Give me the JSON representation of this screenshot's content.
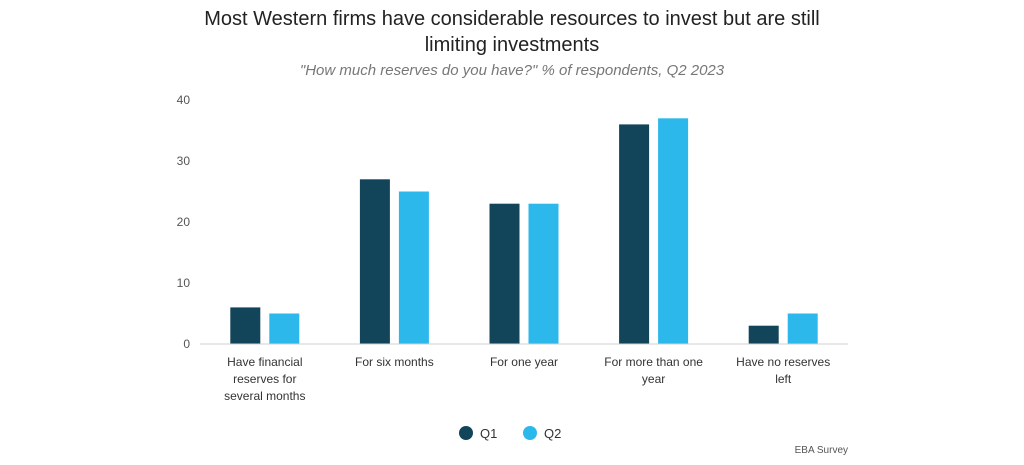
{
  "chart_data": {
    "type": "bar",
    "title": "Most Western firms have considerable resources to invest but are still\nlimiting investments",
    "subtitle": "\"How much reserves do you have?\" % of respondents, Q2 2023",
    "categories": [
      "Have financial\nreserves for\nseveral months",
      "For six months",
      "For one year",
      "For more than one\nyear",
      "Have no reserves\nleft"
    ],
    "series": [
      {
        "name": "Q1",
        "color": "#124559",
        "values": [
          6,
          27,
          23,
          36,
          3
        ]
      },
      {
        "name": "Q2",
        "color": "#2cb8ea",
        "values": [
          5,
          25,
          23,
          37,
          5
        ]
      }
    ],
    "ylim": [
      0,
      40
    ],
    "yticks": [
      0,
      10,
      20,
      30,
      40
    ],
    "grid": false,
    "legend_position": "bottom-center",
    "source": "EBA Survey"
  }
}
